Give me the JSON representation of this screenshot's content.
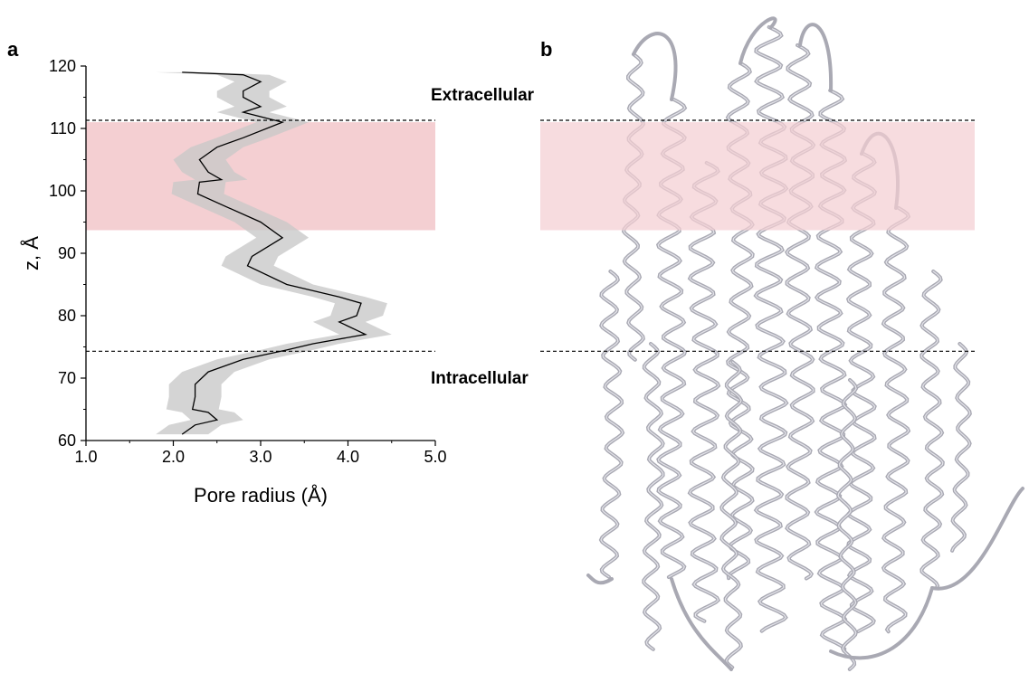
{
  "panels": {
    "a": {
      "letter": "a"
    },
    "b": {
      "letter": "b"
    }
  },
  "annotations": {
    "extracellular": "Extracellular",
    "intracellular": "Intracellular"
  },
  "colors": {
    "band": "#f4cfd2",
    "ci_fill": "#c8c8c8",
    "line": "#000000",
    "protein": "#a9a9b3",
    "protein_highlight": "#e4e4ea"
  },
  "chart_data": {
    "type": "line",
    "xlabel": "Pore radius (Å)",
    "ylabel": "z, Å",
    "xlim": [
      1.0,
      5.0
    ],
    "ylim": [
      60,
      120
    ],
    "xticks": [
      "1.0",
      "2.0",
      "3.0",
      "4.0",
      "5.0"
    ],
    "yticks": [
      "60",
      "70",
      "80",
      "90",
      "100",
      "110",
      "120"
    ],
    "grid": false,
    "series": [
      {
        "points": [
          [
            2.1,
            119
          ],
          [
            2.8,
            118.6
          ],
          [
            3.0,
            117.5
          ],
          [
            2.8,
            116
          ],
          [
            2.8,
            115
          ],
          [
            3.0,
            113.5
          ],
          [
            2.8,
            112.6
          ],
          [
            3.25,
            111
          ],
          [
            2.8,
            108.5
          ],
          [
            2.5,
            107
          ],
          [
            2.3,
            105
          ],
          [
            2.4,
            103
          ],
          [
            2.55,
            101.8
          ],
          [
            2.3,
            101.4
          ],
          [
            2.28,
            99.5
          ],
          [
            2.6,
            97.5
          ],
          [
            3.0,
            95
          ],
          [
            3.25,
            92.5
          ],
          [
            2.9,
            89.5
          ],
          [
            2.85,
            88
          ],
          [
            3.3,
            85
          ],
          [
            3.9,
            83
          ],
          [
            4.15,
            82
          ],
          [
            4.1,
            80
          ],
          [
            3.9,
            79
          ],
          [
            4.2,
            77
          ],
          [
            3.6,
            75.5
          ],
          [
            3.3,
            74.5
          ],
          [
            2.8,
            73
          ],
          [
            2.4,
            71
          ],
          [
            2.25,
            69
          ],
          [
            2.25,
            67
          ],
          [
            2.22,
            65
          ],
          [
            2.4,
            64.5
          ],
          [
            2.5,
            63.3
          ],
          [
            2.25,
            62.5
          ],
          [
            2.1,
            61
          ]
        ],
        "std": 0.3
      }
    ],
    "bands": [
      {
        "from": 93.7,
        "to": 111.0
      }
    ],
    "reference_lines": [
      111.3,
      74.3
    ]
  }
}
